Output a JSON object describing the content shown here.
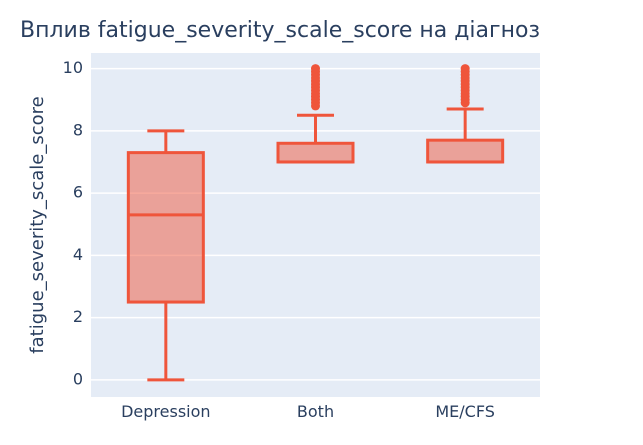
{
  "chart_data": {
    "type": "box",
    "title": "Вплив fatigue_severity_scale_score на діагноз",
    "xlabel": "",
    "ylabel": "fatigue_severity_scale_score",
    "ylim": [
      -0.55,
      10.5
    ],
    "yticks": [
      0,
      2,
      4,
      6,
      8,
      10
    ],
    "grid": true,
    "legend": "none",
    "colors": {
      "box_line": "#ef553b",
      "box_fill": "#ef553b",
      "plot_bg": "#e5ecf6",
      "grid": "#ffffff"
    },
    "categories": [
      "Depression",
      "Both",
      "ME/CFS"
    ],
    "boxes": [
      {
        "category": "Depression",
        "lower_whisker": 0,
        "q1": 2.5,
        "median": 5.3,
        "q3": 7.3,
        "upper_whisker": 8,
        "outliers": []
      },
      {
        "category": "Both",
        "lower_whisker": 7.0,
        "q1": 7.0,
        "median": 7.0,
        "q3": 7.6,
        "upper_whisker": 8.5,
        "outliers": [
          8.8,
          8.9,
          9.0,
          9.1,
          9.2,
          9.3,
          9.4,
          9.5,
          9.6,
          9.7,
          9.8,
          9.9,
          10.0
        ]
      },
      {
        "category": "ME/CFS",
        "lower_whisker": 7.0,
        "q1": 7.0,
        "median": 7.0,
        "q3": 7.7,
        "upper_whisker": 8.7,
        "outliers": [
          8.9,
          9.0,
          9.1,
          9.2,
          9.3,
          9.4,
          9.5,
          9.6,
          9.7,
          9.8,
          9.9,
          10.0
        ]
      }
    ]
  }
}
